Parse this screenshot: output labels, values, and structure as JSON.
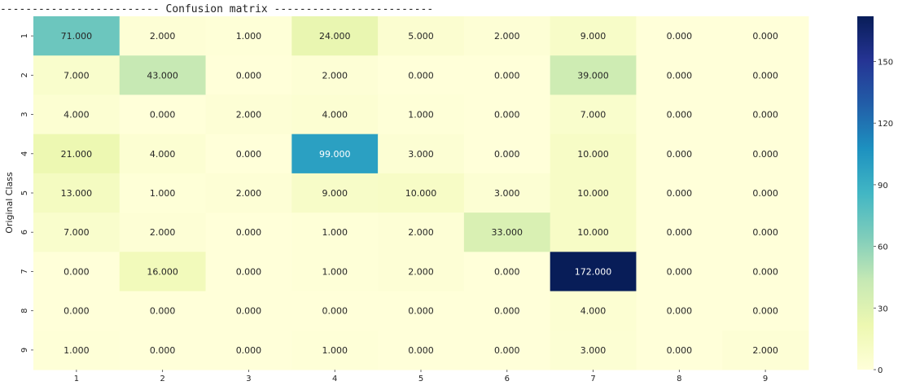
{
  "header": {
    "caption": "------------------------- Confusion matrix -------------------------"
  },
  "chart_data": {
    "type": "heatmap",
    "title": "Confusion matrix",
    "xlabel": "",
    "ylabel": "Original Class",
    "x_categories": [
      "1",
      "2",
      "3",
      "4",
      "5",
      "6",
      "7",
      "8",
      "9"
    ],
    "y_categories": [
      "1",
      "2",
      "3",
      "4",
      "5",
      "6",
      "7",
      "8",
      "9"
    ],
    "values": [
      [
        71,
        2,
        1,
        24,
        5,
        2,
        9,
        0,
        0
      ],
      [
        7,
        43,
        0,
        2,
        0,
        0,
        39,
        0,
        0
      ],
      [
        4,
        0,
        2,
        4,
        1,
        0,
        7,
        0,
        0
      ],
      [
        21,
        4,
        0,
        99,
        3,
        0,
        10,
        0,
        0
      ],
      [
        13,
        1,
        2,
        9,
        10,
        3,
        10,
        0,
        0
      ],
      [
        7,
        2,
        0,
        1,
        2,
        33,
        10,
        0,
        0
      ],
      [
        0,
        16,
        0,
        1,
        2,
        0,
        172,
        0,
        0
      ],
      [
        0,
        0,
        0,
        0,
        0,
        0,
        4,
        0,
        0
      ],
      [
        1,
        0,
        0,
        1,
        0,
        0,
        3,
        0,
        2
      ]
    ],
    "value_format": "0.000",
    "colormap": "YlGnBu",
    "colorbar": {
      "vmin": 0,
      "vmax": 172,
      "ticks": [
        0,
        30,
        60,
        90,
        120,
        150
      ]
    }
  }
}
